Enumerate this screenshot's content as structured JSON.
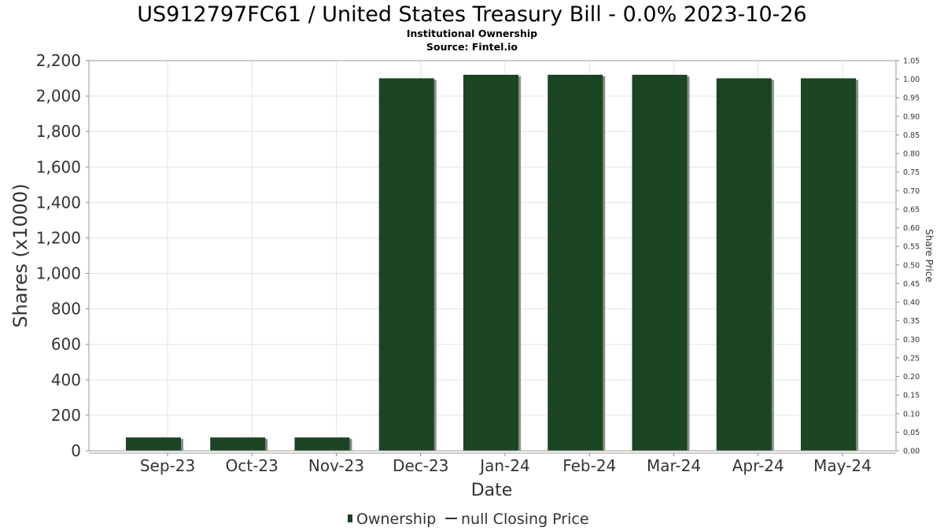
{
  "chart_data": {
    "type": "bar",
    "title": "US912797FC61 / United States Treasury Bill - 0.0% 2023-10-26",
    "subtitle": "Institutional Ownership",
    "source": "Source: Fintel.io",
    "xlabel": "Date",
    "ylabel": "Shares (x1000)",
    "y2label": "Share Price",
    "categories": [
      "Sep-23",
      "Oct-23",
      "Nov-23",
      "Dec-23",
      "Jan-24",
      "Feb-24",
      "Mar-24",
      "Apr-24",
      "May-24"
    ],
    "series": [
      {
        "name": "Ownership",
        "values": [
          75,
          75,
          75,
          2100,
          2120,
          2120,
          2120,
          2100,
          2100
        ],
        "color": "#1a4222"
      }
    ],
    "ylim": [
      0,
      2200
    ],
    "yticks": [
      0,
      200,
      400,
      600,
      800,
      1000,
      1200,
      1400,
      1600,
      1800,
      2000,
      2200
    ],
    "y2lim": [
      0,
      1.05
    ],
    "y2ticks": [
      "0.00",
      "0.05",
      "0.10",
      "0.15",
      "0.20",
      "0.25",
      "0.30",
      "0.35",
      "0.40",
      "0.45",
      "0.50",
      "0.55",
      "0.60",
      "0.65",
      "0.70",
      "0.75",
      "0.80",
      "0.85",
      "0.90",
      "0.95",
      "1.00",
      "1.05"
    ],
    "legend": [
      {
        "label": "Ownership",
        "kind": "bar",
        "color": "#1a4222"
      },
      {
        "label": "null Closing Price",
        "kind": "line",
        "color": "#333333"
      }
    ],
    "legend_position": "bottom",
    "grid": true
  }
}
